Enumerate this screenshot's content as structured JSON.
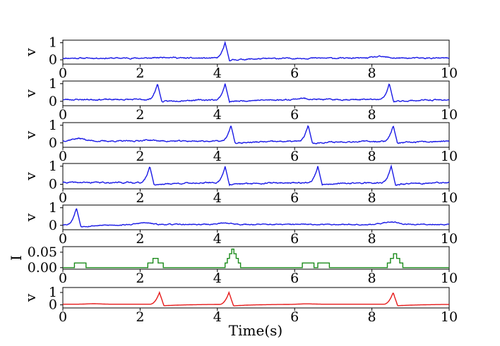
{
  "chart_data": [
    {
      "type": "line",
      "ylabel": "v",
      "xlim": [
        0,
        10
      ],
      "ylim": [
        -0.25,
        1.15
      ],
      "x_ticks": [
        "0",
        "2",
        "4",
        "6",
        "8",
        "10"
      ],
      "y_ticks": [
        "0",
        "1"
      ],
      "y_tick_values": [
        0,
        1
      ],
      "color": "#1a1ae6",
      "baseline": 0.1,
      "noise": 0.025,
      "spikes": [
        [
          4.2,
          1.0
        ]
      ],
      "bumps": [
        [
          2.7,
          0.06
        ],
        [
          8.2,
          0.08
        ]
      ],
      "seed": 11
    },
    {
      "type": "line",
      "ylabel": "v",
      "xlim": [
        0,
        10
      ],
      "ylim": [
        -0.25,
        1.15
      ],
      "x_ticks": [
        "0",
        "2",
        "4",
        "6",
        "8",
        "10"
      ],
      "y_ticks": [
        "0",
        "1"
      ],
      "y_tick_values": [
        0,
        1
      ],
      "color": "#1a1ae6",
      "baseline": 0.1,
      "noise": 0.025,
      "spikes": [
        [
          2.45,
          1.0
        ],
        [
          4.2,
          1.0
        ],
        [
          8.45,
          1.0
        ]
      ],
      "bumps": [
        [
          6.2,
          0.07
        ]
      ],
      "seed": 23
    },
    {
      "type": "line",
      "ylabel": "v",
      "xlim": [
        0,
        10
      ],
      "ylim": [
        -0.25,
        1.15
      ],
      "x_ticks": [
        "0",
        "2",
        "4",
        "6",
        "8",
        "10"
      ],
      "y_ticks": [
        "0",
        "1"
      ],
      "y_tick_values": [
        0,
        1
      ],
      "color": "#1a1ae6",
      "baseline": 0.1,
      "noise": 0.025,
      "spikes": [
        [
          4.35,
          1.0
        ],
        [
          6.35,
          1.0
        ],
        [
          8.55,
          1.0
        ]
      ],
      "bumps": [
        [
          0.4,
          0.15
        ],
        [
          2.2,
          0.06
        ]
      ],
      "seed": 37
    },
    {
      "type": "line",
      "ylabel": "v",
      "xlim": [
        0,
        10
      ],
      "ylim": [
        -0.25,
        1.15
      ],
      "x_ticks": [
        "0",
        "2",
        "4",
        "6",
        "8",
        "10"
      ],
      "y_ticks": [
        "0",
        "1"
      ],
      "y_tick_values": [
        0,
        1
      ],
      "color": "#1a1ae6",
      "baseline": 0.1,
      "noise": 0.025,
      "spikes": [
        [
          2.25,
          1.0
        ],
        [
          4.2,
          1.0
        ],
        [
          6.6,
          1.0
        ],
        [
          8.5,
          1.0
        ]
      ],
      "bumps": [],
      "seed": 41
    },
    {
      "type": "line",
      "ylabel": "v",
      "xlim": [
        0,
        10
      ],
      "ylim": [
        -0.25,
        1.15
      ],
      "x_ticks": [
        "0",
        "2",
        "4",
        "6",
        "8",
        "10"
      ],
      "y_ticks": [
        "0",
        "1"
      ],
      "y_tick_values": [
        0,
        1
      ],
      "color": "#1a1ae6",
      "baseline": 0.05,
      "noise": 0.02,
      "spikes": [
        [
          0.35,
          1.0
        ]
      ],
      "bumps": [
        [
          2.1,
          0.1
        ],
        [
          4.2,
          0.08
        ],
        [
          8.5,
          0.15
        ]
      ],
      "seed": 53
    },
    {
      "type": "line",
      "ylabel": "I",
      "xlim": [
        0,
        10
      ],
      "ylim": [
        -0.005,
        0.068
      ],
      "x_ticks": [
        "0",
        "2",
        "4",
        "6",
        "8",
        "10"
      ],
      "y_ticks": [
        "0.00",
        "0.05"
      ],
      "y_tick_values": [
        0,
        0.05
      ],
      "color": "#1a8a1a",
      "pulses": [
        {
          "x0": 0.3,
          "x1": 0.6,
          "steps": [
            0.015
          ]
        },
        {
          "x0": 2.2,
          "x1": 2.6,
          "steps": [
            0.015,
            0.03,
            0.015
          ]
        },
        {
          "x0": 4.2,
          "x1": 4.6,
          "steps": [
            0.015,
            0.03,
            0.045,
            0.06,
            0.045,
            0.03,
            0.015
          ]
        },
        {
          "x0": 6.2,
          "x1": 6.5,
          "steps": [
            0.015
          ]
        },
        {
          "x0": 6.6,
          "x1": 6.9,
          "steps": [
            0.015
          ]
        },
        {
          "x0": 8.4,
          "x1": 8.8,
          "steps": [
            0.015,
            0.03,
            0.045,
            0.03,
            0.015
          ]
        }
      ]
    },
    {
      "type": "line",
      "ylabel": "v",
      "xlabel": "Time(s)",
      "xlim": [
        0,
        10
      ],
      "ylim": [
        -0.25,
        1.4
      ],
      "x_ticks": [
        "0",
        "2",
        "4",
        "6",
        "8",
        "10"
      ],
      "y_ticks": [
        "0",
        "1"
      ],
      "y_tick_values": [
        0,
        1
      ],
      "color": "#e61a1a",
      "baseline": 0.05,
      "noise": 0.0,
      "spikes": [
        [
          2.5,
          1.0
        ],
        [
          4.3,
          1.0
        ],
        [
          8.55,
          1.0
        ]
      ],
      "bumps": [
        [
          0.8,
          0.04
        ],
        [
          6.3,
          0.04
        ]
      ],
      "seed": 67
    }
  ]
}
